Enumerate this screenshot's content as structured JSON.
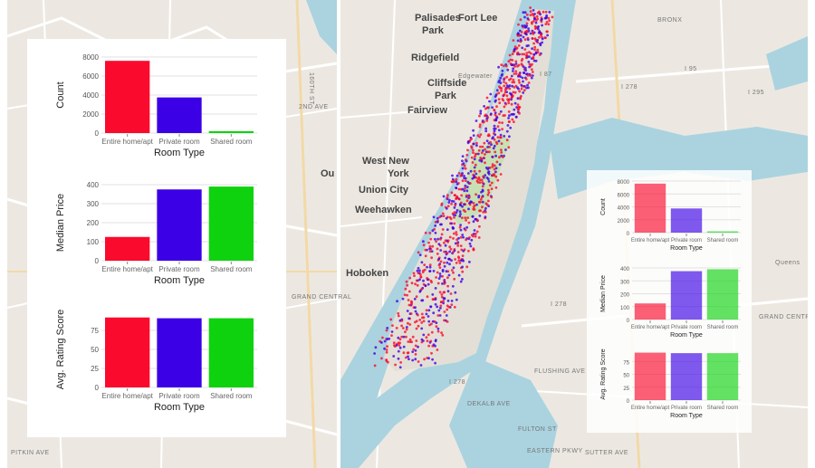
{
  "colors": {
    "entire": "#fa0a2d",
    "private": "#3c00e6",
    "shared": "#0fd20f",
    "water": "#aad3df",
    "land": "#ece8e1"
  },
  "map_labels": [
    {
      "text": "Palisades",
      "cls": ""
    },
    {
      "text": "Park",
      "cls": ""
    },
    {
      "text": "Fort Lee",
      "cls": ""
    },
    {
      "text": "Ridgefield",
      "cls": ""
    },
    {
      "text": "Edgewater",
      "cls": "small"
    },
    {
      "text": "Cliffside",
      "cls": ""
    },
    {
      "text": "Park",
      "cls": ""
    },
    {
      "text": "Fairview",
      "cls": ""
    },
    {
      "text": "West New",
      "cls": ""
    },
    {
      "text": "York",
      "cls": ""
    },
    {
      "text": "Union City",
      "cls": ""
    },
    {
      "text": "Weehawken",
      "cls": ""
    },
    {
      "text": "Hoboken",
      "cls": ""
    },
    {
      "text": "BRONX",
      "cls": "small"
    },
    {
      "text": "I 87",
      "cls": "small"
    },
    {
      "text": "I 278",
      "cls": "small"
    },
    {
      "text": "I 95",
      "cls": "small"
    },
    {
      "text": "I 295",
      "cls": "small"
    },
    {
      "text": "I 278",
      "cls": "small"
    },
    {
      "text": "I 278",
      "cls": "small"
    },
    {
      "text": "Queens",
      "cls": "small"
    },
    {
      "text": "GRAND CENTRAL",
      "cls": "small"
    },
    {
      "text": "FLUSHING AVE",
      "cls": "small"
    },
    {
      "text": "DEKALB AVE",
      "cls": "small"
    },
    {
      "text": "FULTON ST",
      "cls": "small"
    },
    {
      "text": "EASTERN PKWY",
      "cls": "small"
    },
    {
      "text": "SUTTER AVE",
      "cls": "small"
    },
    {
      "text": "PITKIN AVE",
      "cls": "small"
    },
    {
      "text": "GRAND CENTRAL",
      "cls": "small"
    },
    {
      "text": "160TH ST",
      "cls": "small"
    },
    {
      "text": "2ND AVE",
      "cls": "small"
    },
    {
      "text": "Ou",
      "cls": ""
    }
  ],
  "chart_data": [
    {
      "type": "bar",
      "panel": "left",
      "categories": [
        "Entire home/apt",
        "Private room",
        "Shared room"
      ],
      "values": [
        7600,
        3750,
        200
      ],
      "xlabel": "Room Type",
      "ylabel": "Count",
      "ylim": [
        0,
        8000
      ],
      "yticks": [
        0,
        2000,
        4000,
        6000,
        8000
      ]
    },
    {
      "type": "bar",
      "panel": "left",
      "categories": [
        "Entire home/apt",
        "Private room",
        "Shared room"
      ],
      "values": [
        125,
        375,
        390
      ],
      "xlabel": "Room Type",
      "ylabel": "Median Price",
      "ylim": [
        0,
        400
      ],
      "yticks": [
        0,
        100,
        200,
        300,
        400
      ]
    },
    {
      "type": "bar",
      "panel": "left",
      "categories": [
        "Entire home/apt",
        "Private room",
        "Shared room"
      ],
      "values": [
        92,
        91,
        91
      ],
      "xlabel": "Room Type",
      "ylabel": "Avg. Rating Score",
      "ylim": [
        0,
        100
      ],
      "yticks": [
        0,
        25,
        50,
        75
      ]
    },
    {
      "type": "bar",
      "panel": "right",
      "categories": [
        "Entire home/apt",
        "Private room",
        "Shared room"
      ],
      "values": [
        7600,
        3750,
        200
      ],
      "xlabel": "Room Type",
      "ylabel": "Count",
      "ylim": [
        0,
        8000
      ],
      "yticks": [
        0,
        2000,
        4000,
        6000,
        8000
      ]
    },
    {
      "type": "bar",
      "panel": "right",
      "categories": [
        "Entire home/apt",
        "Private room",
        "Shared room"
      ],
      "values": [
        125,
        375,
        390
      ],
      "xlabel": "Room Type",
      "ylabel": "Median Price",
      "ylim": [
        0,
        400
      ],
      "yticks": [
        0,
        100,
        200,
        300,
        400
      ]
    },
    {
      "type": "bar",
      "panel": "right",
      "categories": [
        "Entire home/apt",
        "Private room",
        "Shared room"
      ],
      "values": [
        92,
        91,
        91
      ],
      "xlabel": "Room Type",
      "ylabel": "Avg. Rating Score",
      "ylim": [
        0,
        100
      ],
      "yticks": [
        0,
        25,
        50,
        75
      ]
    }
  ]
}
